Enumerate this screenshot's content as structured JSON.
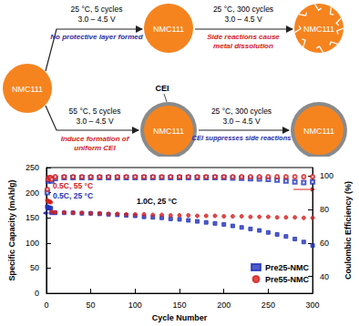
{
  "diagram": {
    "particles": [
      "NMC111",
      "NMC111",
      "NMC111",
      "NMC111",
      "NMC111"
    ],
    "cei_label": "CEI",
    "steps": [
      {
        "conditions": [
          "25 °C, 5 cycles",
          "3.0 – 4.5 V"
        ],
        "note": [
          "No protective layer formed"
        ],
        "note_color": "#2b2ba0"
      },
      {
        "conditions": [
          "25 °C, 300 cycles",
          "3.0 – 4.5 V"
        ],
        "note": [
          "Side reactions cause",
          "metal dissolution"
        ],
        "note_color": "#d42020"
      },
      {
        "conditions": [
          "55 °C, 5 cycles",
          "3.0 – 4.5 V"
        ],
        "note": [
          "Induce formation of",
          "uniform CEI"
        ],
        "note_color": "#d42020"
      },
      {
        "conditions": [
          "25 °C, 300 cycles",
          "3.0 – 4.5 V"
        ],
        "note": [
          "CEI suppresses side reactions"
        ],
        "note_color": "#2b2ba0"
      }
    ]
  },
  "chart_data": {
    "type": "scatter",
    "xlabel": "Cycle Number",
    "ylabel": "Specific Capacity (mAh/g)",
    "y2label": "Coulombic Efficiency (%)",
    "xlim": [
      0,
      300
    ],
    "xticks": [
      0,
      50,
      100,
      150,
      200,
      250,
      300
    ],
    "ylim": [
      0,
      250
    ],
    "yticks": [
      0,
      50,
      100,
      150,
      200,
      250
    ],
    "y2lim": [
      30,
      105
    ],
    "y2ticks": [
      40,
      60,
      80,
      100
    ],
    "grid": false,
    "legend": "lower right",
    "annotations": [
      {
        "text": "0.5C, 55 °C",
        "color": "#d42020"
      },
      {
        "text": "0.5C, 25 °C",
        "color": "#2233bb"
      },
      {
        "text": "1.0C, 25 °C",
        "color": "#000000"
      }
    ],
    "x": [
      1,
      2,
      3,
      4,
      5,
      6,
      10,
      20,
      30,
      40,
      50,
      60,
      70,
      80,
      90,
      100,
      110,
      120,
      130,
      140,
      150,
      160,
      170,
      180,
      190,
      200,
      210,
      220,
      230,
      240,
      250,
      260,
      270,
      280,
      290,
      300
    ],
    "series": [
      {
        "name": "Pre25-NMC",
        "color": "#2233bb",
        "marker": "square",
        "values": [
          172,
          170,
          170,
          169,
          169,
          160,
          160,
          160,
          160,
          159,
          159,
          158,
          157,
          156,
          155,
          154,
          152,
          151,
          150,
          148,
          147,
          145,
          143,
          141,
          139,
          137,
          134,
          131,
          128,
          125,
          121,
          117,
          113,
          108,
          102,
          95
        ]
      },
      {
        "name": "Pre55-NMC",
        "color": "#d42020",
        "marker": "circle",
        "values": [
          185,
          183,
          182,
          182,
          181,
          162,
          161,
          161,
          160,
          160,
          159,
          159,
          158,
          158,
          157,
          157,
          157,
          156,
          156,
          155,
          155,
          155,
          154,
          154,
          154,
          153,
          153,
          153,
          152,
          152,
          152,
          151,
          151,
          151,
          150,
          150
        ]
      },
      {
        "name": "Pre25-NMC",
        "color": "#2233bb",
        "marker": "square_open",
        "axis": "y2",
        "values": [
          90,
          97,
          98,
          98,
          98,
          97,
          98.5,
          99,
          99,
          99,
          99,
          99,
          99,
          99,
          99,
          99,
          99,
          99,
          99,
          99,
          99,
          99,
          99,
          99,
          99,
          99,
          98.8,
          98.6,
          98.4,
          98.2,
          98,
          97.5,
          97,
          96.5,
          96,
          96.5
        ]
      },
      {
        "name": "Pre55-NMC",
        "color": "#d42020",
        "marker": "circle_open",
        "axis": "y2",
        "values": [
          92,
          98,
          99,
          99,
          99,
          98,
          99.5,
          99.5,
          99.5,
          99.5,
          99.5,
          99.5,
          99.5,
          99.5,
          99.5,
          99.5,
          99.5,
          99.5,
          99.5,
          99.5,
          99.5,
          99.5,
          99.5,
          99.5,
          99.5,
          99.5,
          99.5,
          99.5,
          99.5,
          99.5,
          99.5,
          99.5,
          99.5,
          99.5,
          99.5,
          99.5
        ]
      }
    ]
  }
}
